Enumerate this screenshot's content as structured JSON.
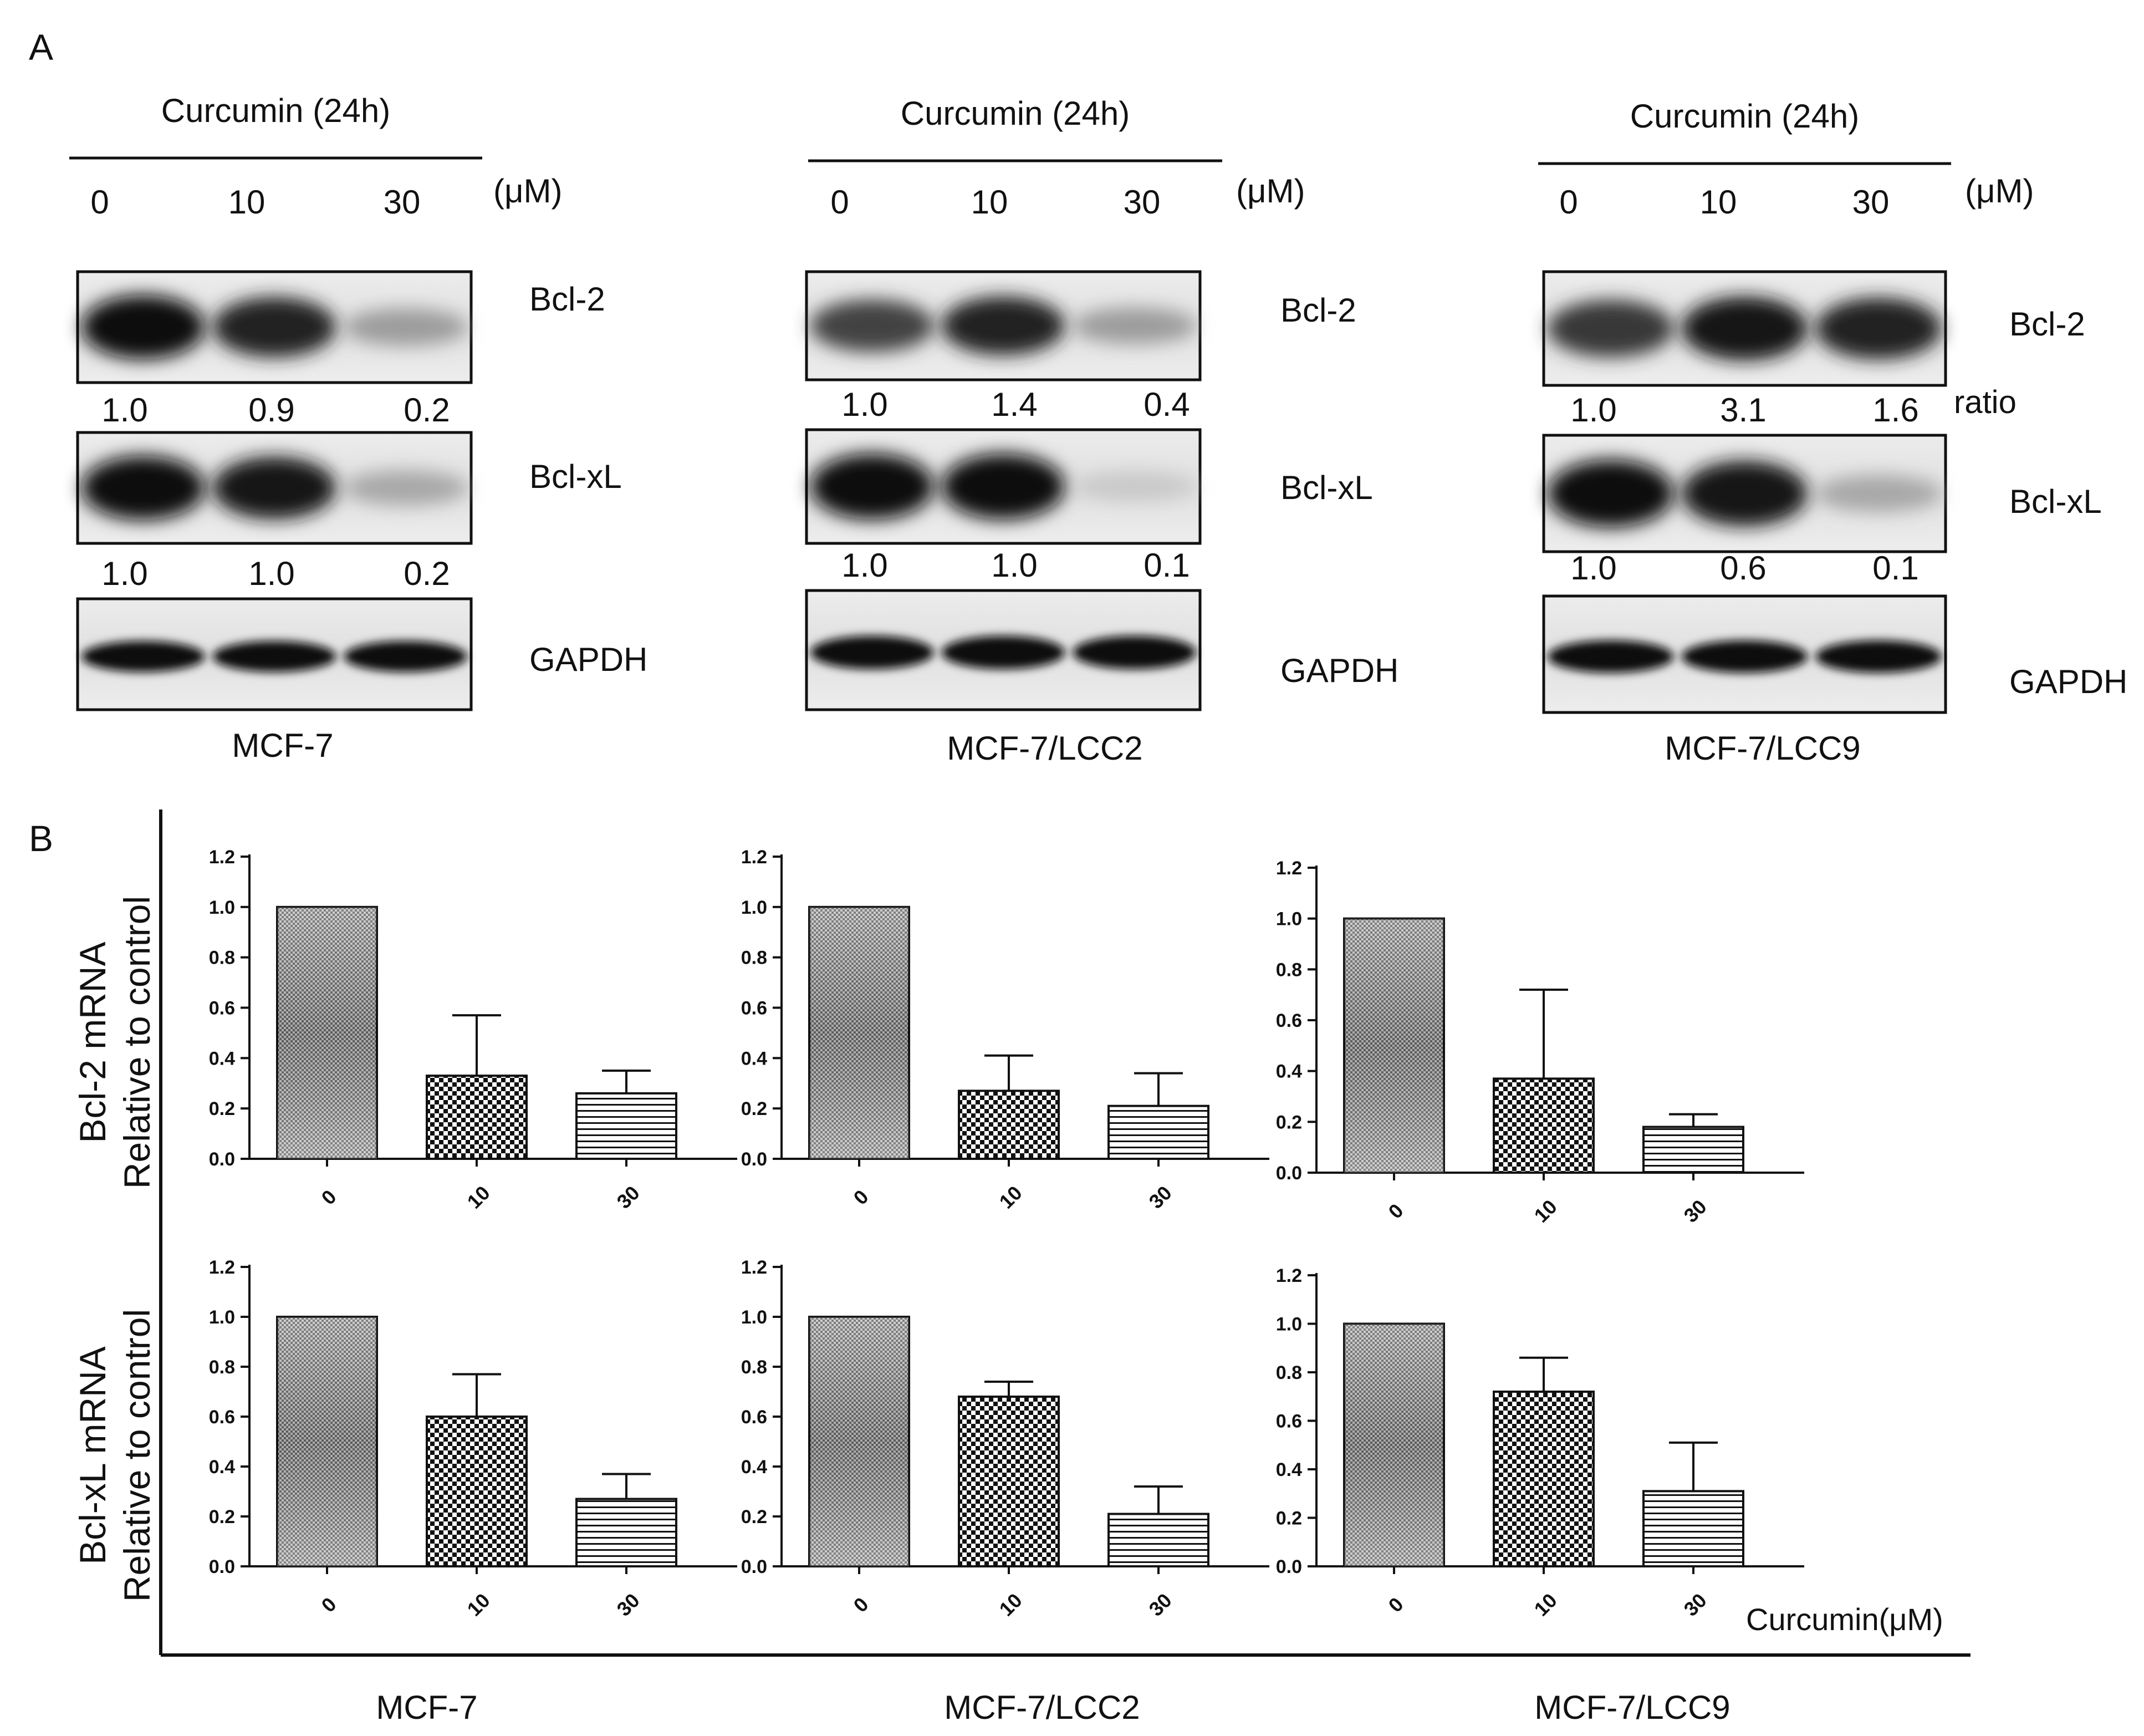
{
  "panel_a": {
    "label": "A",
    "treatment_title": "Curcumin (24h)",
    "unit": "(μM)",
    "ratio_label": "ratio",
    "blots": [
      {
        "cell_line": "MCF-7",
        "doses": [
          "0",
          "10",
          "30"
        ],
        "rows": [
          {
            "protein": "Bcl-2",
            "intensities": [
              1.0,
              0.9,
              0.35
            ],
            "ratios": [
              "1.0",
              "0.9",
              "0.2"
            ]
          },
          {
            "protein": "Bcl-xL",
            "intensities": [
              1.0,
              0.95,
              0.3
            ],
            "ratios": [
              "1.0",
              "1.0",
              "0.2"
            ]
          },
          {
            "protein": "GAPDH",
            "intensities": [
              1.0,
              1.0,
              1.0
            ],
            "ratios": null
          }
        ]
      },
      {
        "cell_line": "MCF-7/LCC2",
        "doses": [
          "0",
          "10",
          "30"
        ],
        "rows": [
          {
            "protein": "Bcl-2",
            "intensities": [
              0.75,
              0.9,
              0.35
            ],
            "ratios": [
              "1.0",
              "1.4",
              "0.4"
            ]
          },
          {
            "protein": "Bcl-xL",
            "intensities": [
              1.0,
              1.0,
              0.15
            ],
            "ratios": [
              "1.0",
              "1.0",
              "0.1"
            ]
          },
          {
            "protein": "GAPDH",
            "intensities": [
              1.0,
              1.0,
              1.0
            ],
            "ratios": null
          }
        ]
      },
      {
        "cell_line": "MCF-7/LCC9",
        "doses": [
          "0",
          "10",
          "30"
        ],
        "rows": [
          {
            "protein": "Bcl-2",
            "intensities": [
              0.8,
              0.95,
              0.9
            ],
            "ratios": [
              "1.0",
              "3.1",
              "1.6"
            ]
          },
          {
            "protein": "Bcl-xL",
            "intensities": [
              1.0,
              0.95,
              0.3
            ],
            "ratios": [
              "1.0",
              "0.6",
              "0.1"
            ]
          },
          {
            "protein": "GAPDH",
            "intensities": [
              1.0,
              1.0,
              1.0
            ],
            "ratios": null
          }
        ]
      }
    ]
  },
  "panel_b": {
    "label": "B",
    "row_labels": [
      [
        "Bcl-2 mRNA",
        "Relative to control"
      ],
      [
        "Bcl-xL mRNA",
        "Relative to control"
      ]
    ],
    "x_title": "Curcumin(μM)",
    "column_labels": [
      "MCF-7",
      "MCF-7/LCC2",
      "MCF-7/LCC9"
    ]
  },
  "chart_data": [
    {
      "type": "bar",
      "gene": "Bcl-2",
      "cell_line": "MCF-7",
      "categories": [
        "0",
        "10",
        "30"
      ],
      "values": [
        1.0,
        0.33,
        0.26
      ],
      "error": [
        0,
        0.24,
        0.09
      ],
      "ylim": [
        0,
        1.2
      ],
      "yticks": [
        0.0,
        0.2,
        0.4,
        0.6,
        0.8,
        1.0,
        1.2
      ]
    },
    {
      "type": "bar",
      "gene": "Bcl-2",
      "cell_line": "MCF-7/LCC2",
      "categories": [
        "0",
        "10",
        "30"
      ],
      "values": [
        1.0,
        0.27,
        0.21
      ],
      "error": [
        0,
        0.14,
        0.13
      ],
      "ylim": [
        0,
        1.2
      ],
      "yticks": [
        0.0,
        0.2,
        0.4,
        0.6,
        0.8,
        1.0,
        1.2
      ]
    },
    {
      "type": "bar",
      "gene": "Bcl-2",
      "cell_line": "MCF-7/LCC9",
      "categories": [
        "0",
        "10",
        "30"
      ],
      "values": [
        1.0,
        0.37,
        0.18
      ],
      "error": [
        0,
        0.35,
        0.05
      ],
      "ylim": [
        0,
        1.2
      ],
      "yticks": [
        0.0,
        0.2,
        0.4,
        0.6,
        0.8,
        1.0,
        1.2
      ]
    },
    {
      "type": "bar",
      "gene": "Bcl-xL",
      "cell_line": "MCF-7",
      "categories": [
        "0",
        "10",
        "30"
      ],
      "values": [
        1.0,
        0.6,
        0.27
      ],
      "error": [
        0,
        0.17,
        0.1
      ],
      "ylim": [
        0,
        1.2
      ],
      "yticks": [
        0.0,
        0.2,
        0.4,
        0.6,
        0.8,
        1.0,
        1.2
      ]
    },
    {
      "type": "bar",
      "gene": "Bcl-xL",
      "cell_line": "MCF-7/LCC2",
      "categories": [
        "0",
        "10",
        "30"
      ],
      "values": [
        1.0,
        0.68,
        0.21
      ],
      "error": [
        0,
        0.06,
        0.11
      ],
      "ylim": [
        0,
        1.2
      ],
      "yticks": [
        0.0,
        0.2,
        0.4,
        0.6,
        0.8,
        1.0,
        1.2
      ]
    },
    {
      "type": "bar",
      "gene": "Bcl-xL",
      "cell_line": "MCF-7/LCC9",
      "categories": [
        "0",
        "10",
        "30"
      ],
      "values": [
        1.0,
        0.72,
        0.31
      ],
      "error": [
        0,
        0.14,
        0.2
      ],
      "ylim": [
        0,
        1.2
      ],
      "yticks": [
        0.0,
        0.2,
        0.4,
        0.6,
        0.8,
        1.0,
        1.2
      ]
    }
  ]
}
